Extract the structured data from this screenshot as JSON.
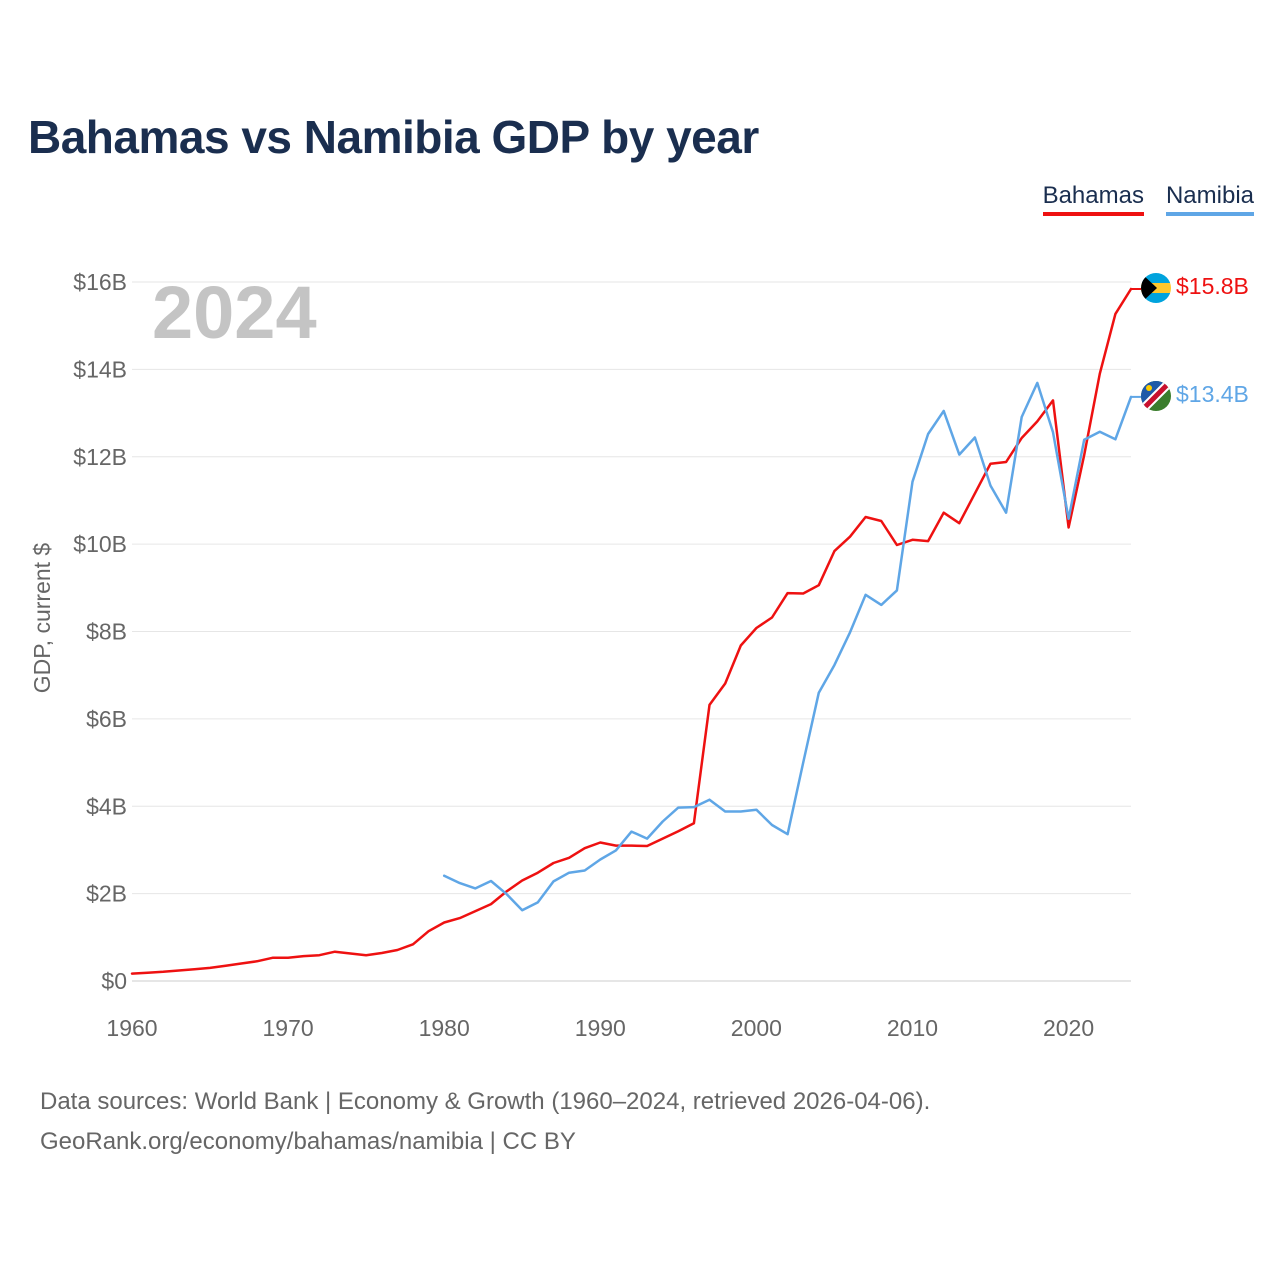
{
  "title": "Bahamas vs Namibia GDP by year",
  "year_label": "2024",
  "legend": [
    {
      "name": "Bahamas",
      "color": "#ee1111"
    },
    {
      "name": "Namibia",
      "color": "#5fa6e6"
    }
  ],
  "footer": {
    "line1": "Data sources: World Bank | Economy & Growth (1960–2024, retrieved 2026-04-06).",
    "line2": "GeoRank.org/economy/bahamas/namibia | CC BY"
  },
  "chart_data": {
    "type": "line",
    "title": "Bahamas vs Namibia GDP by year",
    "xlabel": "",
    "ylabel": "GDP, current $",
    "xlim": [
      1960,
      2024
    ],
    "ylim": [
      0,
      16
    ],
    "y_unit": "billions USD",
    "x_ticks": [
      1960,
      1970,
      1980,
      1990,
      2000,
      2010,
      2020
    ],
    "y_ticks": [
      0,
      2,
      4,
      6,
      8,
      10,
      12,
      14,
      16
    ],
    "y_tick_labels": [
      "$0",
      "$2B",
      "$4B",
      "$6B",
      "$8B",
      "$10B",
      "$12B",
      "$14B",
      "$16B"
    ],
    "grid": true,
    "legend_position": "top-right",
    "series": [
      {
        "name": "Bahamas",
        "color": "#ee1111",
        "end_label": "$15.8B",
        "x": [
          1960,
          1961,
          1962,
          1963,
          1964,
          1965,
          1966,
          1967,
          1968,
          1969,
          1970,
          1971,
          1972,
          1973,
          1974,
          1975,
          1976,
          1977,
          1978,
          1979,
          1980,
          1981,
          1982,
          1983,
          1984,
          1985,
          1986,
          1987,
          1988,
          1989,
          1990,
          1991,
          1992,
          1993,
          1994,
          1995,
          1996,
          1997,
          1998,
          1999,
          2000,
          2001,
          2002,
          2003,
          2004,
          2005,
          2006,
          2007,
          2008,
          2009,
          2010,
          2011,
          2012,
          2013,
          2014,
          2015,
          2016,
          2017,
          2018,
          2019,
          2020,
          2021,
          2022,
          2023,
          2024
        ],
        "values": [
          0.17,
          0.19,
          0.21,
          0.24,
          0.27,
          0.3,
          0.35,
          0.4,
          0.45,
          0.53,
          0.53,
          0.57,
          0.59,
          0.67,
          0.63,
          0.59,
          0.64,
          0.71,
          0.84,
          1.14,
          1.34,
          1.44,
          1.6,
          1.76,
          2.05,
          2.3,
          2.48,
          2.7,
          2.82,
          3.04,
          3.17,
          3.1,
          3.1,
          3.09,
          3.26,
          3.43,
          3.61,
          6.32,
          6.81,
          7.68,
          8.08,
          8.32,
          8.88,
          8.87,
          9.06,
          9.84,
          10.17,
          10.62,
          10.53,
          9.98,
          10.1,
          10.07,
          10.72,
          10.48,
          11.16,
          11.84,
          11.88,
          12.43,
          12.81,
          13.29,
          10.38,
          12.04,
          13.9,
          15.27,
          15.84
        ]
      },
      {
        "name": "Namibia",
        "color": "#5fa6e6",
        "end_label": "$13.4B",
        "x": [
          1980,
          1981,
          1982,
          1983,
          1984,
          1985,
          1986,
          1987,
          1988,
          1989,
          1990,
          1991,
          1992,
          1993,
          1994,
          1995,
          1996,
          1997,
          1998,
          1999,
          2000,
          2001,
          2002,
          2003,
          2004,
          2005,
          2006,
          2007,
          2008,
          2009,
          2010,
          2011,
          2012,
          2013,
          2014,
          2015,
          2016,
          2017,
          2018,
          2019,
          2020,
          2021,
          2022,
          2023,
          2024
        ],
        "values": [
          2.41,
          2.24,
          2.12,
          2.29,
          1.99,
          1.62,
          1.8,
          2.28,
          2.48,
          2.53,
          2.78,
          2.99,
          3.42,
          3.26,
          3.65,
          3.97,
          3.98,
          4.15,
          3.88,
          3.88,
          3.92,
          3.57,
          3.36,
          5.0,
          6.6,
          7.23,
          7.98,
          8.84,
          8.61,
          8.94,
          11.43,
          12.52,
          13.05,
          12.05,
          12.44,
          11.34,
          10.72,
          12.91,
          13.69,
          12.56,
          10.58,
          12.39,
          12.57,
          12.4,
          13.37
        ]
      }
    ]
  }
}
